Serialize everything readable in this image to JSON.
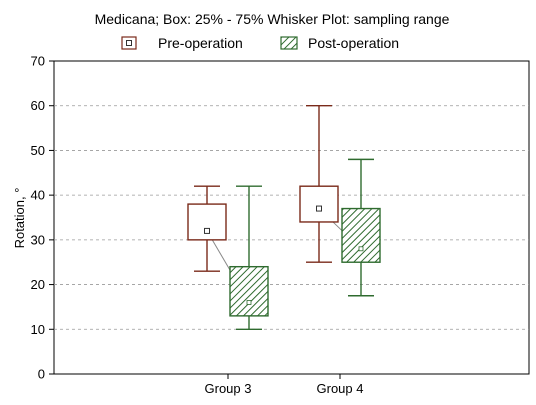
{
  "chart_data": {
    "type": "box",
    "title": "Medicana; Box: 25% - 75%  Whisker Plot: sampling range",
    "ylabel": "Rotation, °",
    "xlabel": "",
    "ylim": [
      0,
      70
    ],
    "yticks": [
      0,
      10,
      20,
      30,
      40,
      50,
      60,
      70
    ],
    "grid": "horizontal-dashed",
    "legend_position": "top",
    "categories": [
      "Group 3",
      "Group 4"
    ],
    "series": [
      {
        "name": "Pre-operation",
        "color": "#7a2a1a",
        "fill": "none",
        "boxes": [
          {
            "category": "Group 3",
            "min": 23,
            "q1": 30,
            "median": 32,
            "q3": 38,
            "max": 42
          },
          {
            "category": "Group 4",
            "min": 25,
            "q1": 34,
            "median": 37,
            "q3": 42,
            "max": 60
          }
        ]
      },
      {
        "name": "Post-operation",
        "color": "#2f6b2f",
        "fill": "hatched-green",
        "boxes": [
          {
            "category": "Group 3",
            "min": 10,
            "q1": 13,
            "median": 16,
            "q3": 24,
            "max": 42
          },
          {
            "category": "Group 4",
            "min": 17.5,
            "q1": 25,
            "median": 28,
            "q3": 37,
            "max": 48
          }
        ]
      }
    ],
    "connector_color": "#888888"
  }
}
